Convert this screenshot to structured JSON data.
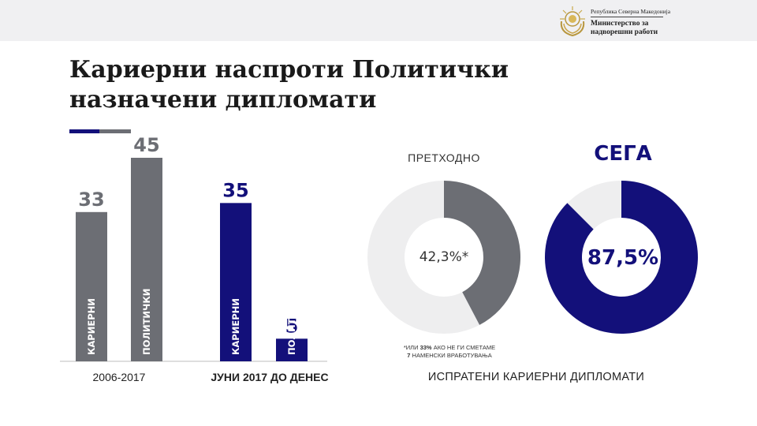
{
  "header": {
    "republic": "Република Северна Македонија",
    "ministry_line1": "Министерство за",
    "ministry_line2": "надворешни работи"
  },
  "title": {
    "line1": "Кариерни наспроти Политички",
    "line2": "назначени дипломати"
  },
  "colors": {
    "navy": "#13107a",
    "gray": "#6c6e74",
    "light_gray": "#eeeeef"
  },
  "chart_data": [
    {
      "type": "bar",
      "group_labels": [
        "2006-2017",
        "ЈУНИ 2017 ДО ДЕНЕС"
      ],
      "series": [
        {
          "group": "2006-2017",
          "color": "#6c6e74",
          "categories": [
            "КАРИЕРНИ",
            "ПОЛИТИЧКИ"
          ],
          "values": [
            33,
            45
          ]
        },
        {
          "group": "ЈУНИ 2017 ДО ДЕНЕС",
          "color": "#13107a",
          "categories": [
            "КАРИЕРНИ",
            "ПОЛИТИЧКИ"
          ],
          "values": [
            35,
            5
          ]
        }
      ]
    },
    {
      "type": "pie",
      "title": "ПРЕТХОДНО",
      "center_label": "42,3%*",
      "value_percent": 42.3,
      "color": "#6c6e74",
      "rest_color": "#eeeeef"
    },
    {
      "type": "pie",
      "title": "СЕГА",
      "center_label": "87,5%",
      "value_percent": 87.5,
      "color": "#13107a",
      "rest_color": "#eeeeef"
    }
  ],
  "footnote": {
    "prefix": "*ИЛИ",
    "highlight1": "33%",
    "mid": "АКО НЕ ГИ СМЕТАМЕ",
    "highlight2": "7",
    "suffix": "НАМЕНСКИ ВРАБОТУВАЊА"
  },
  "bottom_label": "ИСПРАТЕНИ КАРИЕРНИ ДИПЛОМАТИ"
}
